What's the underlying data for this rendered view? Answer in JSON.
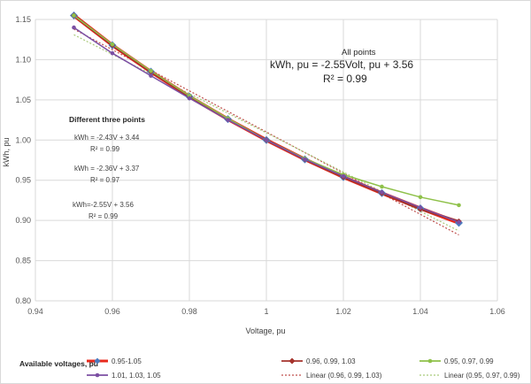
{
  "chart_data": {
    "type": "line",
    "title": "",
    "xlabel": "Voltage, pu",
    "ylabel": "kWh, pu",
    "xlim": [
      0.94,
      1.06
    ],
    "ylim": [
      0.8,
      1.15
    ],
    "x_ticks": [
      "0.94",
      "0.96",
      "0.98",
      "1",
      "1.02",
      "1.04",
      "1.06"
    ],
    "y_ticks": [
      "0.80",
      "0.85",
      "0.90",
      "0.95",
      "1.00",
      "1.05",
      "1.10",
      "1.15"
    ],
    "grid": true,
    "legend_title": "Available voltages, pu",
    "legend_position": "bottom",
    "series": [
      {
        "name": "0.95-1.05",
        "color": "#e8291c",
        "marker_color": "#4a7cc0",
        "marker": "diamond",
        "x": [
          0.95,
          0.96,
          0.97,
          0.98,
          0.99,
          1.0,
          1.01,
          1.02,
          1.03,
          1.04,
          1.05
        ],
        "y": [
          1.155,
          1.118,
          1.085,
          1.054,
          1.026,
          1.0,
          0.976,
          0.954,
          0.934,
          0.915,
          0.897
        ]
      },
      {
        "name": "0.96, 0.99, 1.03",
        "color": "#a5322b",
        "marker": "diamond",
        "x": [
          0.95,
          0.96,
          0.97,
          0.98,
          0.99,
          1.0,
          1.01,
          1.02,
          1.03,
          1.04,
          1.05
        ],
        "y": [
          1.155,
          1.118,
          1.085,
          1.054,
          1.026,
          1.0,
          0.976,
          0.954,
          0.934,
          0.914,
          0.899
        ]
      },
      {
        "name": "0.95, 0.97, 0.99",
        "color": "#8fc14a",
        "marker": "circle",
        "x": [
          0.95,
          0.96,
          0.97,
          0.98,
          0.99,
          1.0,
          1.01,
          1.02,
          1.03,
          1.04,
          1.05
        ],
        "y": [
          1.155,
          1.119,
          1.086,
          1.055,
          1.027,
          1.0,
          0.977,
          0.957,
          0.942,
          0.929,
          0.919
        ]
      },
      {
        "name": "1.01, 1.03, 1.05",
        "color": "#7b4fa3",
        "marker": "circle",
        "x": [
          0.95,
          0.96,
          0.97,
          0.98,
          0.99,
          1.0,
          1.01,
          1.02,
          1.03,
          1.04,
          1.05
        ],
        "y": [
          1.14,
          1.108,
          1.08,
          1.052,
          1.025,
          1.0,
          0.976,
          0.955,
          0.935,
          0.916,
          0.898
        ]
      },
      {
        "name": "Linear (0.96, 0.99, 1.03)",
        "color": "#c0504d",
        "dash": "dotted",
        "x": [
          0.95,
          1.05
        ],
        "y": [
          1.138,
          0.882
        ]
      },
      {
        "name": "Linear (0.95, 0.97, 0.99)",
        "color": "#a9c97a",
        "dash": "dotted",
        "x": [
          0.95,
          1.05
        ],
        "y": [
          1.131,
          0.887
        ]
      }
    ],
    "annotations": {
      "all_points_title": "All points",
      "all_points_eq": "kWh, pu = -2.55Volt, pu + 3.56",
      "all_points_r2": "R² = 0.99",
      "three_points_title": "Different three points",
      "eq1": "kWh = -2.43V + 3.44",
      "r2_1": "R² = 0.99",
      "eq2": "kWh = -2.36V + 3.37",
      "r2_2": "R² = 0.97",
      "eq3": "kWh=-2.55V + 3.56",
      "r2_3": "R² = 0.99"
    }
  }
}
